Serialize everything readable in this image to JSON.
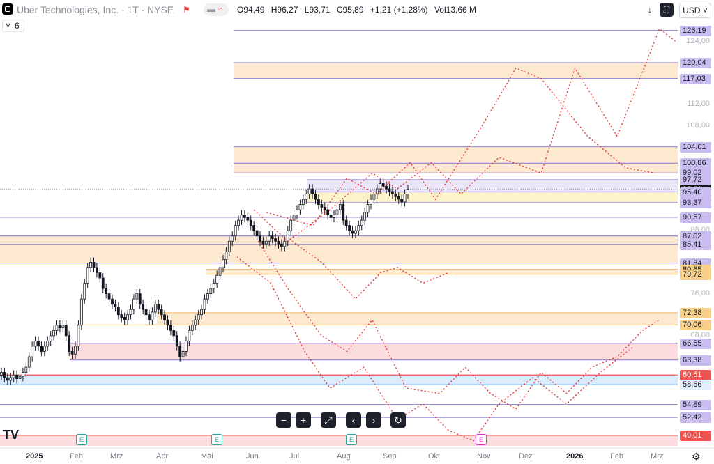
{
  "header": {
    "symbol_title": "Uber Technologies, Inc. · 1T · NYSE",
    "open_label": "O",
    "open": "94,49",
    "high_label": "H",
    "high": "96,27",
    "low_label": "L",
    "low": "93,71",
    "close_label": "C",
    "close": "95,89",
    "change": "+1,21 (+1,28%)",
    "vol_label": "Vol",
    "vol": "13,66 M",
    "indicator_count": "6",
    "currency": "USD"
  },
  "colors": {
    "up": "#131722",
    "down": "#131722",
    "band_orange": "#fde9cf",
    "band_pink": "#fbdde0",
    "band_blue": "#dbeafc",
    "line_purple": "#9b8cd6",
    "path_red": "#e53935",
    "label_purple": "#b7a8e8"
  },
  "chart_data": {
    "type": "candlestick",
    "symbol": "UBER",
    "y_range": [
      47,
      128
    ],
    "y_ticks": [
      "124,00",
      "112,00",
      "108,00",
      "88,00",
      "76,00",
      "68,00"
    ],
    "price_labels": [
      {
        "value": 126.19,
        "text": "126,19",
        "style": "purple"
      },
      {
        "value": 120.04,
        "text": "120,04",
        "style": "purple"
      },
      {
        "value": 117.03,
        "text": "117,03",
        "style": "purple"
      },
      {
        "value": 104.01,
        "text": "104,01",
        "style": "purple"
      },
      {
        "value": 100.86,
        "text": "100,86",
        "style": "purple"
      },
      {
        "value": 99.02,
        "text": "99,02",
        "style": "purple"
      },
      {
        "value": 97.72,
        "text": "97,72",
        "style": "purple"
      },
      {
        "value": 95.89,
        "text": "95,89",
        "style": "current"
      },
      {
        "value": 95.4,
        "text": "95,40",
        "style": "purple"
      },
      {
        "value": 93.37,
        "text": "93,37",
        "style": "purple"
      },
      {
        "value": 90.57,
        "text": "90,57",
        "style": "purple"
      },
      {
        "value": 87.02,
        "text": "87,02",
        "style": "purple"
      },
      {
        "value": 85.41,
        "text": "85,41",
        "style": "purple"
      },
      {
        "value": 81.84,
        "text": "81,84",
        "style": "purple"
      },
      {
        "value": 80.65,
        "text": "80,65",
        "style": "orange"
      },
      {
        "value": 79.72,
        "text": "79,72",
        "style": "orange"
      },
      {
        "value": 72.38,
        "text": "72,38",
        "style": "orange"
      },
      {
        "value": 70.06,
        "text": "70,06",
        "style": "orange"
      },
      {
        "value": 66.55,
        "text": "66,55",
        "style": "purple"
      },
      {
        "value": 63.38,
        "text": "63,38",
        "style": "purple"
      },
      {
        "value": 60.51,
        "text": "60,51",
        "style": "red"
      },
      {
        "value": 58.66,
        "text": "58,66",
        "style": "blue"
      },
      {
        "value": 54.89,
        "text": "54,89",
        "style": "purple"
      },
      {
        "value": 52.42,
        "text": "52,42",
        "style": "purple"
      },
      {
        "value": 49.01,
        "text": "49,01",
        "style": "red"
      }
    ],
    "zones": [
      {
        "from": 117.03,
        "to": 120.04,
        "color": "orange"
      },
      {
        "from": 99.02,
        "to": 104.01,
        "color": "orange"
      },
      {
        "from": 95.4,
        "to": 97.72,
        "color": "purple_light"
      },
      {
        "from": 93.37,
        "to": 95.4,
        "color": "yellow"
      },
      {
        "from": 81.84,
        "to": 87.02,
        "color": "orange"
      },
      {
        "from": 79.72,
        "to": 80.65,
        "color": "orange"
      },
      {
        "from": 70.06,
        "to": 72.38,
        "color": "orange"
      },
      {
        "from": 63.38,
        "to": 66.55,
        "color": "pink"
      },
      {
        "from": 58.66,
        "to": 60.51,
        "color": "blue"
      },
      {
        "from": 47.0,
        "to": 49.01,
        "color": "pink"
      }
    ],
    "x_labels": [
      "2025",
      "Feb",
      "Mrz",
      "Apr",
      "Mai",
      "Jun",
      "Jul",
      "Aug",
      "Sep",
      "Okt",
      "Nov",
      "Dez",
      "2026",
      "Feb",
      "Mrz"
    ],
    "closes": [
      61,
      60,
      59.5,
      60,
      60.5,
      59.8,
      60.2,
      61,
      62,
      64,
      66,
      67,
      66,
      65,
      66,
      67,
      68,
      69,
      70,
      69.5,
      70,
      68,
      65,
      64.5,
      66,
      70,
      75,
      78,
      81,
      82,
      81,
      80,
      79,
      77,
      76,
      75,
      74,
      73.5,
      72,
      71.5,
      71,
      72,
      73,
      75,
      76,
      74,
      73,
      72,
      71,
      72.5,
      74,
      73,
      72,
      71,
      70,
      69,
      68,
      66,
      64,
      65,
      67,
      69,
      70,
      71,
      72,
      73,
      75,
      76,
      77,
      78,
      79.5,
      81,
      82.5,
      84,
      86,
      87,
      89,
      90,
      91,
      90.5,
      90,
      89,
      88,
      87,
      86,
      85.5,
      86,
      87,
      86.5,
      86,
      85.5,
      85,
      86,
      88,
      90,
      91,
      92,
      93,
      94,
      95,
      96,
      95,
      94,
      93,
      92.5,
      92,
      91,
      90.5,
      91,
      92,
      93,
      90,
      89,
      88,
      87.5,
      88,
      89,
      90,
      91.5,
      93,
      94,
      95,
      96,
      97,
      96.5,
      96,
      95.5,
      95,
      94.5,
      94,
      93.5,
      95,
      95.89
    ],
    "forecast_paths": [
      [
        [
          0.07,
          91.5
        ],
        [
          0.18,
          89
        ],
        [
          0.26,
          98
        ],
        [
          0.33,
          95
        ],
        [
          0.41,
          101
        ],
        [
          0.47,
          94
        ],
        [
          0.58,
          108
        ],
        [
          0.66,
          119
        ],
        [
          0.72,
          117
        ],
        [
          0.83,
          106
        ],
        [
          0.92,
          100
        ],
        [
          0.99,
          99
        ]
      ],
      [
        [
          0.04,
          92
        ],
        [
          0.12,
          86
        ],
        [
          0.22,
          92
        ],
        [
          0.32,
          99
        ],
        [
          0.38,
          96
        ],
        [
          0.46,
          101
        ],
        [
          0.53,
          95
        ],
        [
          0.62,
          102
        ],
        [
          0.72,
          99
        ],
        [
          0.8,
          119
        ],
        [
          0.9,
          106
        ],
        [
          1.0,
          126.5
        ],
        [
          1.04,
          124
        ]
      ],
      [
        [
          0.05,
          86
        ],
        [
          0.12,
          77
        ],
        [
          0.2,
          68
        ],
        [
          0.26,
          65
        ],
        [
          0.32,
          71
        ],
        [
          0.4,
          58
        ],
        [
          0.48,
          57
        ],
        [
          0.54,
          62
        ],
        [
          0.6,
          57
        ],
        [
          0.66,
          54
        ],
        [
          0.72,
          61
        ],
        [
          0.78,
          57
        ],
        [
          0.84,
          62
        ],
        [
          0.9,
          64
        ],
        [
          0.96,
          69
        ],
        [
          1.0,
          71
        ]
      ],
      [
        [
          0.13,
          86
        ],
        [
          0.2,
          82
        ],
        [
          0.28,
          75
        ],
        [
          0.34,
          80
        ],
        [
          0.38,
          81
        ],
        [
          0.44,
          78
        ],
        [
          0.5,
          80
        ]
      ],
      [
        [
          0.0,
          83
        ],
        [
          0.08,
          78
        ],
        [
          0.16,
          65
        ],
        [
          0.22,
          58
        ],
        [
          0.3,
          62
        ],
        [
          0.38,
          52
        ],
        [
          0.44,
          55
        ],
        [
          0.5,
          50
        ],
        [
          0.56,
          48
        ],
        [
          0.62,
          55
        ],
        [
          0.7,
          60
        ],
        [
          0.78,
          55
        ],
        [
          0.86,
          61
        ],
        [
          0.94,
          66
        ]
      ]
    ]
  },
  "markers": {
    "earnings": [
      "E",
      "E",
      "E",
      "E"
    ]
  }
}
